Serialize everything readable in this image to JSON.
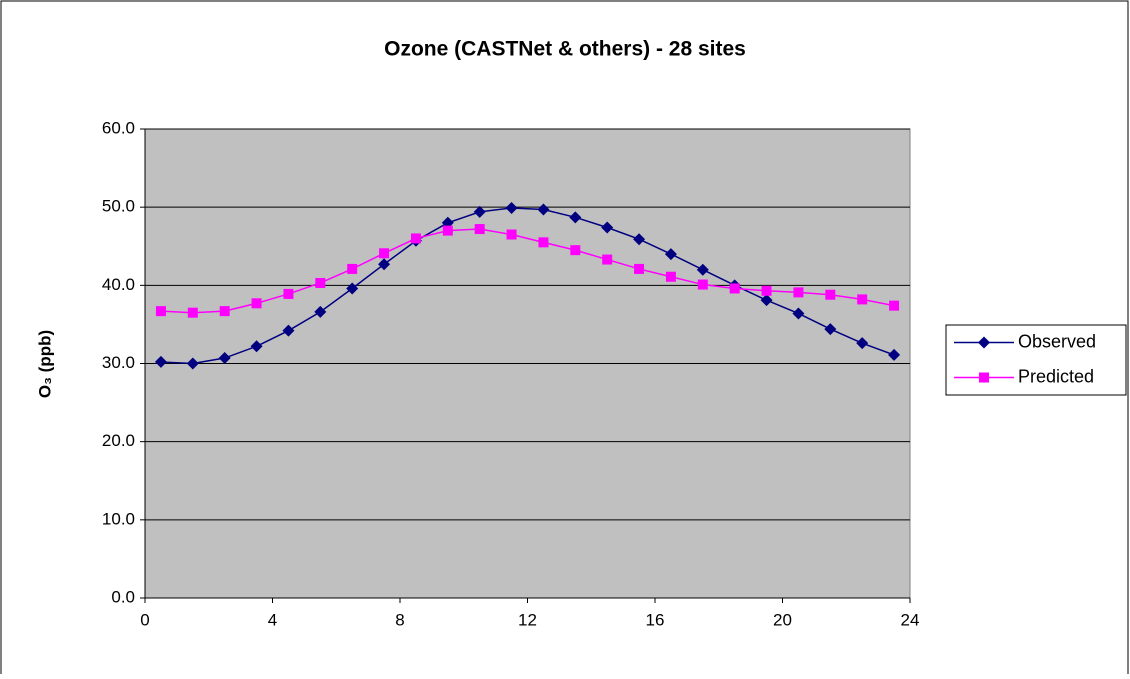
{
  "chart_data": {
    "type": "line",
    "title": "Ozone (CASTNet & others) - 28 sites",
    "y_label": "O₃ (ppb)",
    "x": [
      0.5,
      1.5,
      2.5,
      3.5,
      4.5,
      5.5,
      6.5,
      7.5,
      8.5,
      9.5,
      10.5,
      11.5,
      12.5,
      13.5,
      14.5,
      15.5,
      16.5,
      17.5,
      18.5,
      19.5,
      20.5,
      21.5,
      22.5,
      23.5
    ],
    "series": [
      {
        "name": "Observed",
        "color": "#000080",
        "marker": "diamond",
        "values": [
          30.2,
          30.0,
          30.7,
          32.2,
          34.2,
          36.6,
          39.6,
          42.7,
          45.7,
          48.0,
          49.4,
          49.9,
          49.7,
          48.7,
          47.4,
          45.9,
          44.0,
          42.0,
          40.0,
          38.1,
          36.4,
          34.4,
          32.6,
          31.1
        ]
      },
      {
        "name": "Predicted",
        "color": "#ff00ff",
        "marker": "square",
        "values": [
          36.7,
          36.5,
          36.7,
          37.7,
          38.9,
          40.3,
          42.1,
          44.1,
          46.0,
          47.0,
          47.2,
          46.5,
          45.5,
          44.5,
          43.3,
          42.1,
          41.1,
          40.1,
          39.6,
          39.3,
          39.1,
          38.8,
          38.2,
          37.4
        ]
      }
    ],
    "xlim": [
      0,
      24
    ],
    "xticks": [
      0,
      4,
      8,
      12,
      16,
      20,
      24
    ],
    "ylim": [
      0,
      60
    ],
    "yticks": [
      {
        "value": 0,
        "label": "0.0"
      },
      {
        "value": 10,
        "label": "10.0"
      },
      {
        "value": 20,
        "label": "20.0"
      },
      {
        "value": 30,
        "label": "30.0"
      },
      {
        "value": 40,
        "label": "40.0"
      },
      {
        "value": 50,
        "label": "50.0"
      },
      {
        "value": 60,
        "label": "60.0"
      }
    ],
    "grid": true,
    "legend": "right",
    "plot_background": "#c0c0c0"
  }
}
